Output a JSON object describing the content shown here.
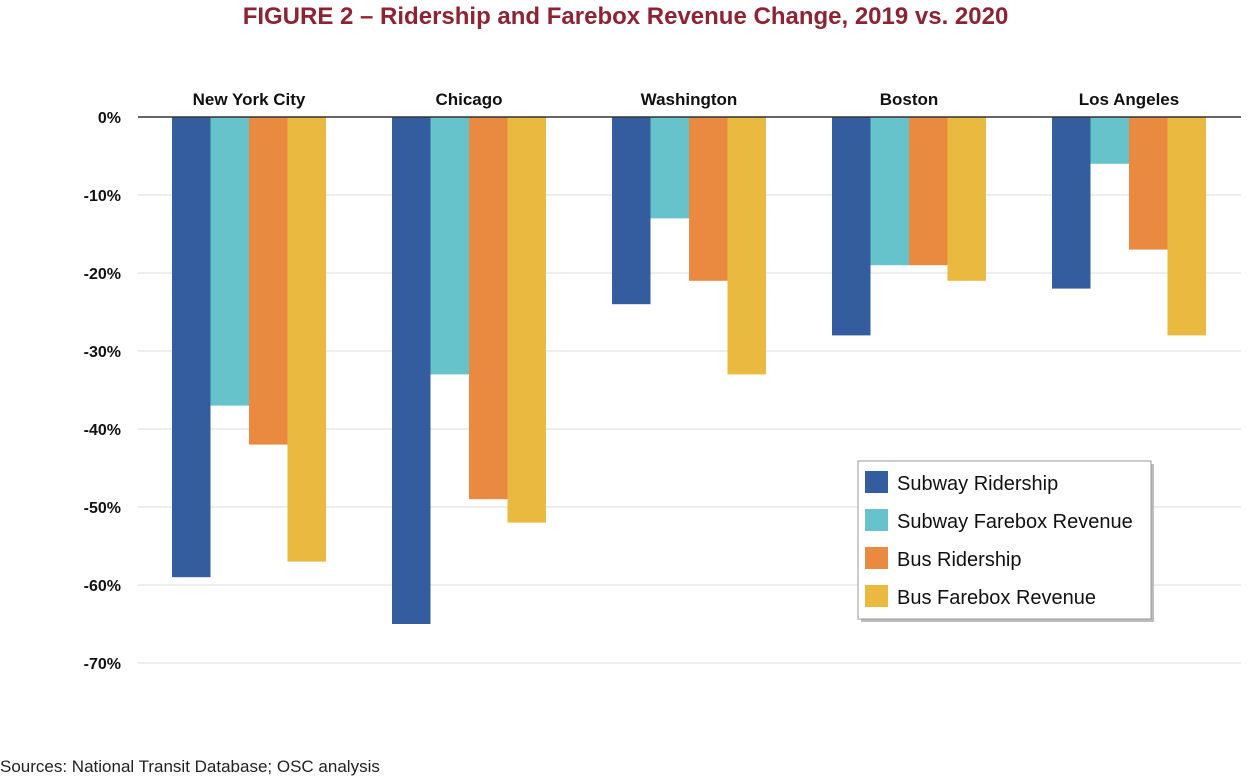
{
  "title": "FIGURE 2 – Ridership and Farebox Revenue Change, 2019 vs. 2020",
  "source": "Sources: National Transit Database; OSC analysis",
  "chart_data": {
    "type": "bar",
    "categories": [
      "New York City",
      "Chicago",
      "Washington",
      "Boston",
      "Los Angeles"
    ],
    "series": [
      {
        "name": "Subway Ridership",
        "color": "#345da0",
        "values": [
          -59,
          -65,
          -24,
          -28,
          -22
        ]
      },
      {
        "name": "Subway Farebox Revenue",
        "color": "#66c3cb",
        "values": [
          -37,
          -33,
          -13,
          -19,
          -6
        ]
      },
      {
        "name": "Bus Ridership",
        "color": "#ea8a40",
        "values": [
          -42,
          -49,
          -21,
          -19,
          -17
        ]
      },
      {
        "name": "Bus Farebox Revenue",
        "color": "#e9b940",
        "values": [
          -57,
          -52,
          -33,
          -21,
          -28
        ]
      }
    ],
    "y_ticks": [
      "0%",
      "-10%",
      "-20%",
      "-30%",
      "-40%",
      "-50%",
      "-60%",
      "-70%"
    ],
    "ylim": [
      -70,
      0
    ],
    "category_labels_position": "top",
    "legend_position": "bottom-right",
    "grid": true
  }
}
